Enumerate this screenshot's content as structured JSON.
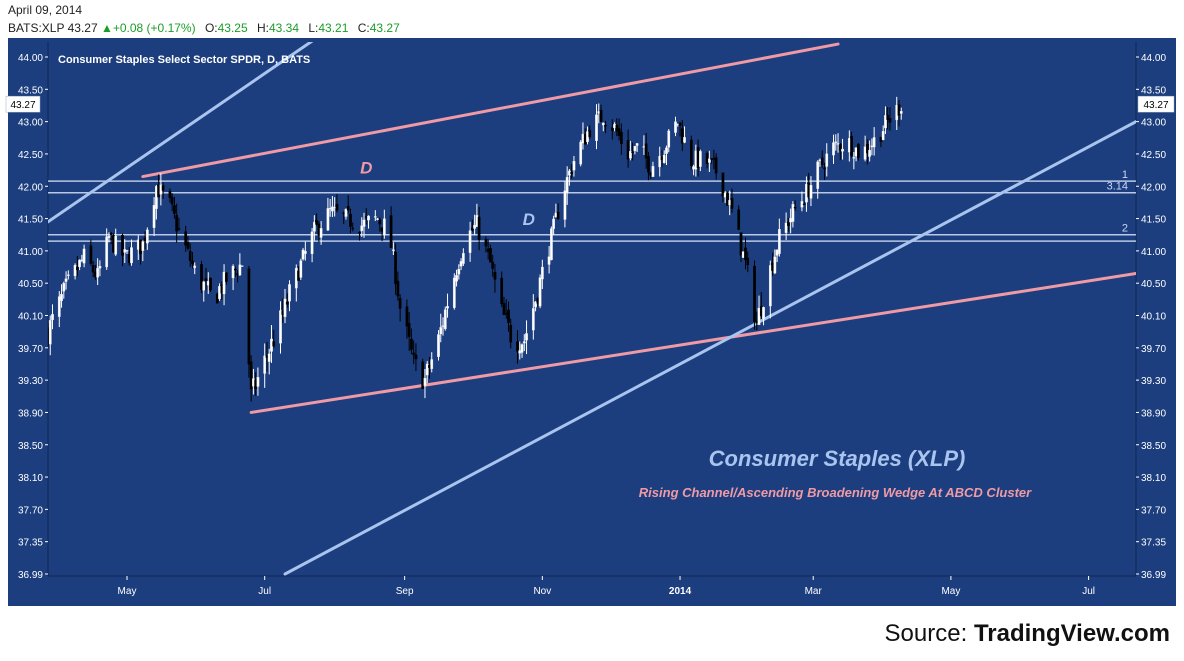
{
  "header": {
    "date": "April 09, 2014",
    "symbol": "BATS:XLP",
    "last": "43.27",
    "change": "+0.08 (+0.17%)",
    "open_label": "O:",
    "open": "43.25",
    "high_label": "H:",
    "high": "43.34",
    "low_label": "L:",
    "low": "43.21",
    "close_label": "C:",
    "close": "43.27"
  },
  "source": {
    "prefix": "Source: ",
    "brand": "TradingView.com"
  },
  "chart_data": {
    "type": "candlestick",
    "title": "Consumer Staples Select Sector SPDR, D, BATS",
    "last_price_label": "43.27",
    "annotation_main": "Consumer Staples (XLP)",
    "annotation_sub": "Rising Channel/Ascending Broadening Wedge At ABCD Cluster",
    "y_ticks": [
      44.0,
      43.5,
      43.0,
      42.5,
      42.0,
      41.5,
      41.0,
      40.5,
      40.1,
      39.7,
      39.3,
      38.9,
      38.5,
      38.1,
      37.7,
      37.35,
      36.99
    ],
    "y_tick_labels": [
      "44.00",
      "43.50",
      "43.00",
      "42.50",
      "42.00",
      "41.50",
      "41.00",
      "40.50",
      "40.10",
      "39.70",
      "39.30",
      "38.90",
      "38.50",
      "38.10",
      "37.70",
      "37.35",
      "36.99"
    ],
    "x_labels": [
      "May",
      "Jul",
      "Sep",
      "Nov",
      "2014",
      "Mar",
      "May",
      "Jul"
    ],
    "x_label_dates": [
      "2013-05-01",
      "2013-07-01",
      "2013-09-01",
      "2013-11-01",
      "2014-01-01",
      "2014-03-01",
      "2014-05-01",
      "2014-07-01"
    ],
    "x_range": [
      "2013-03-27",
      "2014-07-22"
    ],
    "grid": false,
    "colors": {
      "background": "#1c3e7e",
      "axis_text": "#ffffff",
      "frame": "#0f2552",
      "up_candle": "#ffffff",
      "down_candle": "#000000",
      "pink_line": "#ef9aa4",
      "blue_line": "#a9c4ee",
      "level_line": "#c9d8f2",
      "annotation_main": "#a9c4ee",
      "annotation_sub": "#ef9aa4"
    },
    "trend_lines": [
      {
        "color": "pink",
        "from": [
          "2013-05-08",
          42.15
        ],
        "to": [
          "2014-03-12",
          44.2
        ]
      },
      {
        "color": "pink",
        "from": [
          "2013-06-25",
          38.9
        ],
        "to": [
          "2014-07-22",
          40.65
        ]
      },
      {
        "color": "blue",
        "from": [
          "2013-03-27",
          41.45
        ],
        "to": [
          "2013-09-25",
          45.8
        ]
      },
      {
        "color": "blue",
        "from": [
          "2013-07-10",
          36.99
        ],
        "to": [
          "2014-07-22",
          43.0
        ]
      }
    ],
    "levels": [
      {
        "value": 42.08,
        "label": "1"
      },
      {
        "value": 41.9,
        "label": "3.14"
      },
      {
        "value": 41.25,
        "label": "2"
      },
      {
        "value": 41.15,
        "label": ""
      }
    ],
    "text_marks": [
      {
        "text": "D",
        "at": [
          "2013-08-15",
          42.2
        ],
        "color": "pink"
      },
      {
        "text": "D",
        "at": [
          "2013-10-26",
          41.4
        ],
        "color": "blue"
      }
    ],
    "anchors": [
      {
        "date": "2013-03-27",
        "close": 39.9
      },
      {
        "date": "2013-04-05",
        "close": 40.5
      },
      {
        "date": "2013-04-12",
        "close": 40.9
      },
      {
        "date": "2013-04-18",
        "close": 40.6
      },
      {
        "date": "2013-04-23",
        "close": 41.2
      },
      {
        "date": "2013-04-30",
        "close": 40.9
      },
      {
        "date": "2013-05-08",
        "close": 41.1
      },
      {
        "date": "2013-05-14",
        "close": 42.0
      },
      {
        "date": "2013-05-20",
        "close": 41.7
      },
      {
        "date": "2013-05-24",
        "close": 41.3
      },
      {
        "date": "2013-06-01",
        "close": 40.6
      },
      {
        "date": "2013-06-08",
        "close": 40.3
      },
      {
        "date": "2013-06-15",
        "close": 40.6
      },
      {
        "date": "2013-06-21",
        "close": 40.8
      },
      {
        "date": "2013-06-25",
        "close": 39.1
      },
      {
        "date": "2013-07-02",
        "close": 39.6
      },
      {
        "date": "2013-07-09",
        "close": 40.1
      },
      {
        "date": "2013-07-16",
        "close": 40.7
      },
      {
        "date": "2013-07-23",
        "close": 41.3
      },
      {
        "date": "2013-07-30",
        "close": 41.6
      },
      {
        "date": "2013-08-06",
        "close": 41.5
      },
      {
        "date": "2013-08-13",
        "close": 41.4
      },
      {
        "date": "2013-08-20",
        "close": 41.5
      },
      {
        "date": "2013-08-25",
        "close": 41.3
      },
      {
        "date": "2013-08-30",
        "close": 40.2
      },
      {
        "date": "2013-09-05",
        "close": 39.5
      },
      {
        "date": "2013-09-10",
        "close": 39.3
      },
      {
        "date": "2013-09-16",
        "close": 39.8
      },
      {
        "date": "2013-09-22",
        "close": 40.5
      },
      {
        "date": "2013-09-28",
        "close": 41.2
      },
      {
        "date": "2013-10-03",
        "close": 41.4
      },
      {
        "date": "2013-10-09",
        "close": 40.8
      },
      {
        "date": "2013-10-13",
        "close": 40.2
      },
      {
        "date": "2013-10-19",
        "close": 39.8
      },
      {
        "date": "2013-10-24",
        "close": 39.8
      },
      {
        "date": "2013-10-30",
        "close": 40.4
      },
      {
        "date": "2013-11-05",
        "close": 41.2
      },
      {
        "date": "2013-11-10",
        "close": 41.9
      },
      {
        "date": "2013-11-16",
        "close": 42.5
      },
      {
        "date": "2013-11-22",
        "close": 42.9
      },
      {
        "date": "2013-11-28",
        "close": 43.1
      },
      {
        "date": "2013-12-03",
        "close": 42.9
      },
      {
        "date": "2013-12-09",
        "close": 42.5
      },
      {
        "date": "2013-12-14",
        "close": 42.6
      },
      {
        "date": "2013-12-19",
        "close": 42.3
      },
      {
        "date": "2013-12-25",
        "close": 42.6
      },
      {
        "date": "2013-12-31",
        "close": 43.0
      },
      {
        "date": "2014-01-06",
        "close": 42.4
      },
      {
        "date": "2014-01-12",
        "close": 42.4
      },
      {
        "date": "2014-01-18",
        "close": 42.2
      },
      {
        "date": "2014-01-24",
        "close": 41.6
      },
      {
        "date": "2014-01-30",
        "close": 40.8
      },
      {
        "date": "2014-02-04",
        "close": 40.0
      },
      {
        "date": "2014-02-09",
        "close": 40.6
      },
      {
        "date": "2014-02-14",
        "close": 41.2
      },
      {
        "date": "2014-02-20",
        "close": 41.6
      },
      {
        "date": "2014-02-26",
        "close": 41.9
      },
      {
        "date": "2014-03-04",
        "close": 42.3
      },
      {
        "date": "2014-03-10",
        "close": 42.6
      },
      {
        "date": "2014-03-16",
        "close": 42.7
      },
      {
        "date": "2014-03-22",
        "close": 42.5
      },
      {
        "date": "2014-03-28",
        "close": 42.7
      },
      {
        "date": "2014-04-03",
        "close": 43.0
      },
      {
        "date": "2014-04-09",
        "close": 43.27
      }
    ]
  }
}
